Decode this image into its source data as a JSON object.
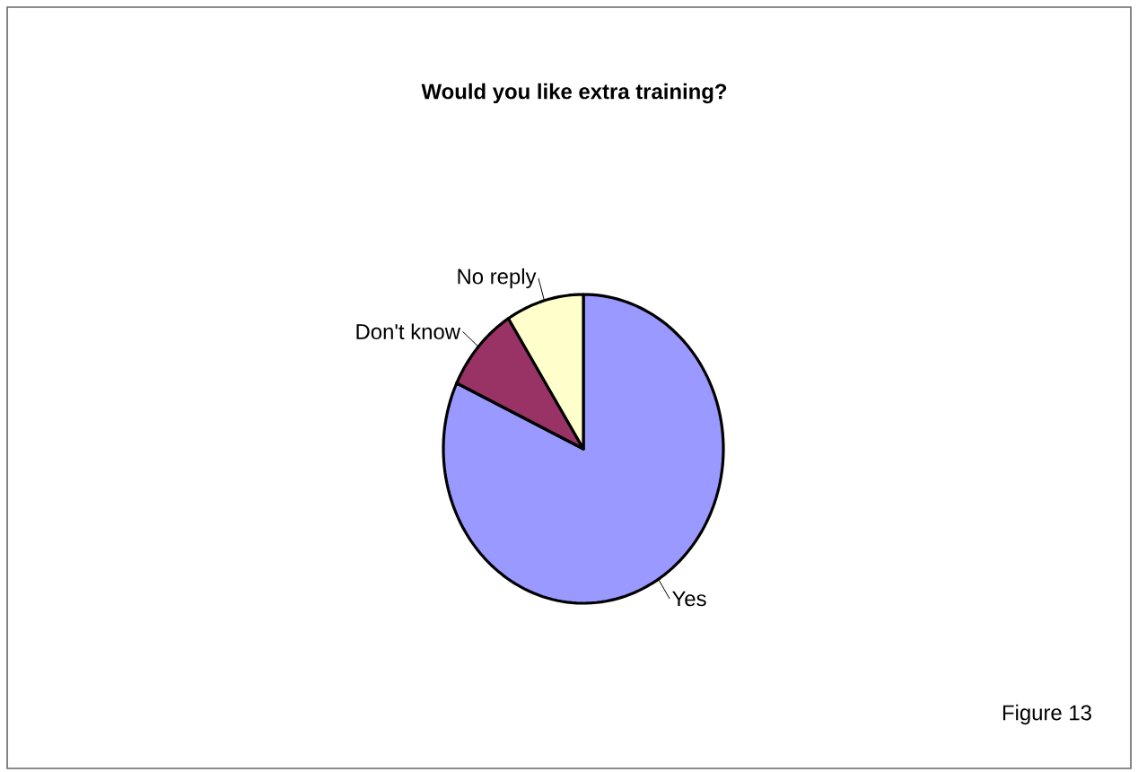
{
  "chart_data": {
    "type": "pie",
    "title": "Would you like extra training?",
    "categories": [
      "Yes",
      "Don't know",
      "No reply"
    ],
    "values": [
      82,
      9,
      9
    ],
    "colors": [
      "#9999ff",
      "#993366",
      "#ffffcc"
    ],
    "annotations": [
      "Figure 13"
    ]
  }
}
